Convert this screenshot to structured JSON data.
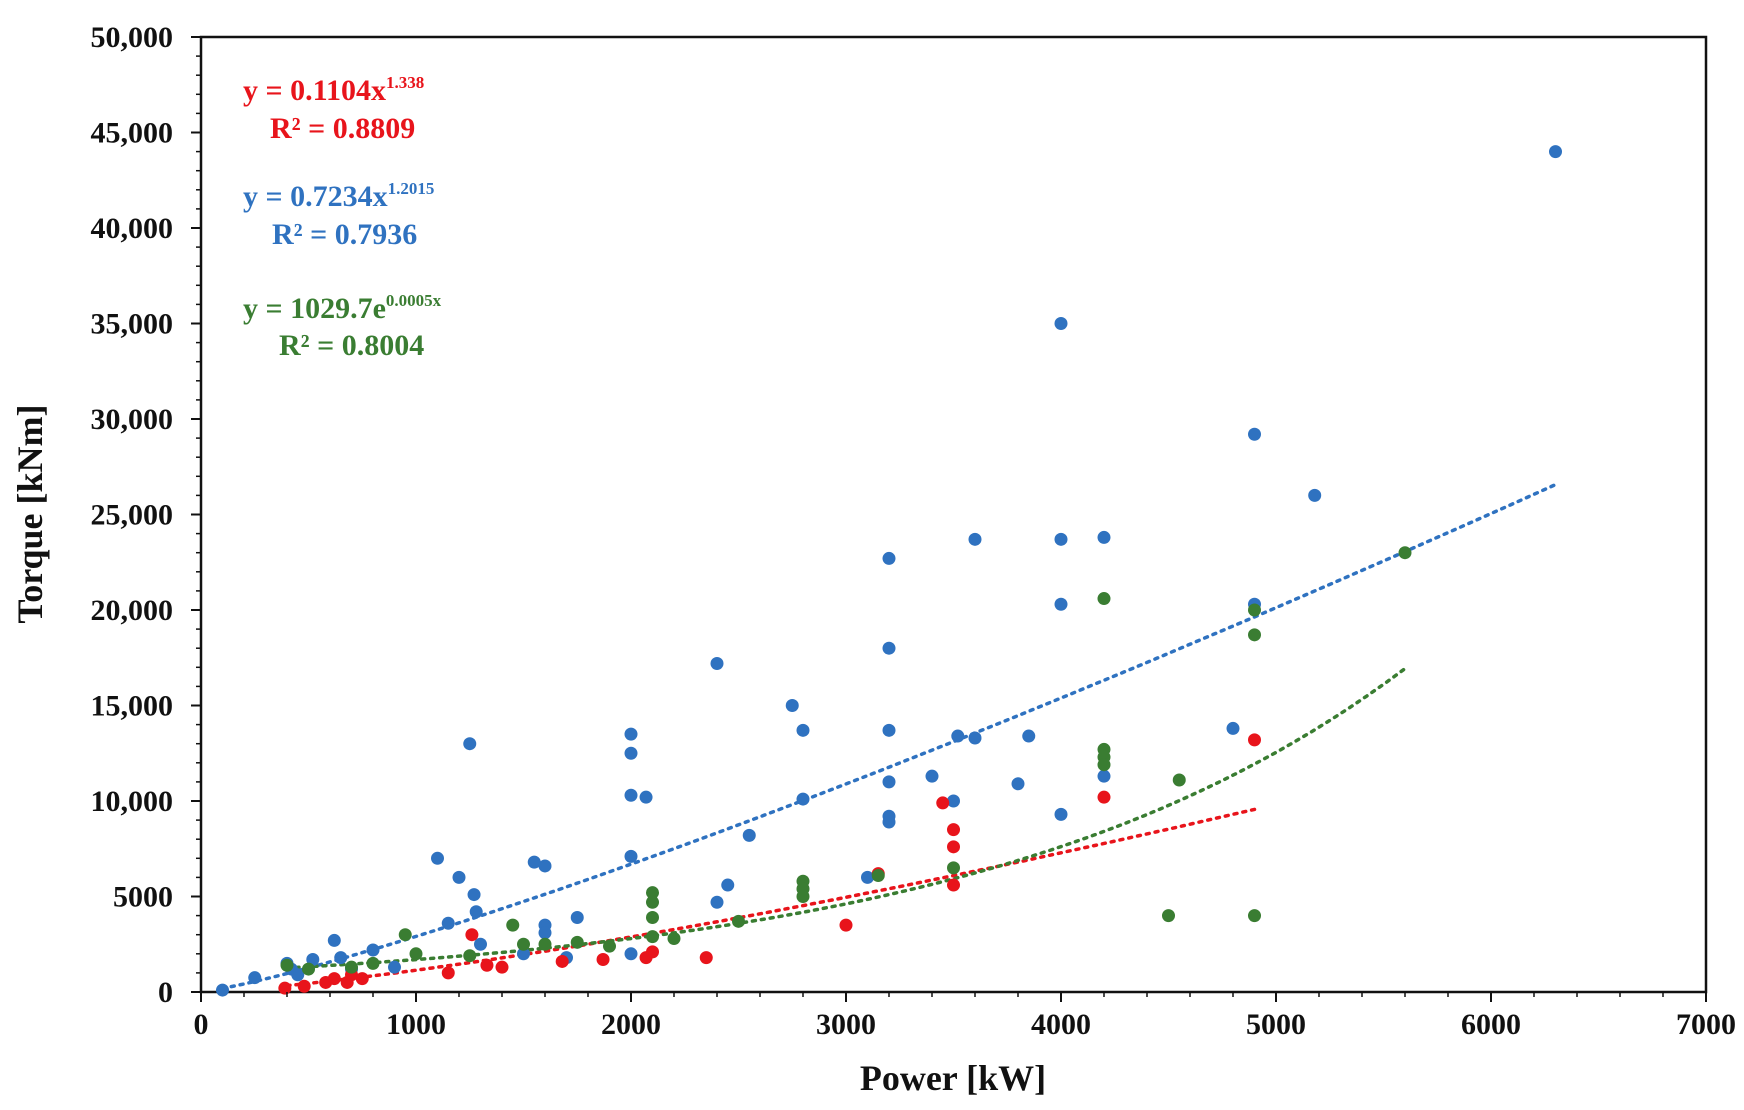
{
  "chart_data": {
    "type": "scatter",
    "title": "",
    "xlabel": "Power [kW]",
    "ylabel": "Torque [kNm]",
    "xlim": [
      0,
      7000
    ],
    "ylim": [
      0,
      50000
    ],
    "x_ticks": [
      0,
      1000,
      2000,
      3000,
      4000,
      5000,
      6000,
      7000
    ],
    "x_tick_labels": [
      "0",
      "1000",
      "2000",
      "3000",
      "4000",
      "5000",
      "6000",
      "7000"
    ],
    "y_ticks": [
      0,
      5000,
      10000,
      15000,
      20000,
      25000,
      30000,
      35000,
      40000,
      45000,
      50000
    ],
    "y_tick_labels": [
      "0",
      "5000",
      "10,000",
      "15,000",
      "20,000",
      "25,000",
      "30,000",
      "35,000",
      "40,000",
      "45,000",
      "50,000"
    ],
    "grid": false,
    "series": [
      {
        "name": "blue",
        "color": "#2f72c0",
        "trendline": {
          "type": "power",
          "a": 0.7234,
          "b": 1.2015,
          "x_range": [
            100,
            6300
          ]
        },
        "equation": "y = 0.7234x",
        "exponent": "1.2015",
        "r2_text": "R² = 0.7936",
        "points": [
          [
            100,
            100
          ],
          [
            250,
            750
          ],
          [
            400,
            1500
          ],
          [
            420,
            1200
          ],
          [
            450,
            900
          ],
          [
            520,
            1700
          ],
          [
            620,
            2700
          ],
          [
            650,
            1800
          ],
          [
            700,
            1200
          ],
          [
            800,
            2200
          ],
          [
            900,
            1300
          ],
          [
            1100,
            7000
          ],
          [
            1150,
            3600
          ],
          [
            1200,
            6000
          ],
          [
            1250,
            13000
          ],
          [
            1270,
            5100
          ],
          [
            1280,
            4200
          ],
          [
            1300,
            2500
          ],
          [
            1500,
            2000
          ],
          [
            1550,
            6800
          ],
          [
            1600,
            6600
          ],
          [
            1600,
            3500
          ],
          [
            1600,
            3100
          ],
          [
            1700,
            1800
          ],
          [
            1750,
            3900
          ],
          [
            2000,
            13500
          ],
          [
            2000,
            12500
          ],
          [
            2000,
            10300
          ],
          [
            2000,
            7100
          ],
          [
            2000,
            2000
          ],
          [
            2070,
            10200
          ],
          [
            2400,
            17200
          ],
          [
            2400,
            4700
          ],
          [
            2450,
            5600
          ],
          [
            2550,
            8200
          ],
          [
            2750,
            15000
          ],
          [
            2800,
            13700
          ],
          [
            2800,
            10100
          ],
          [
            3100,
            6000
          ],
          [
            3200,
            22700
          ],
          [
            3200,
            18000
          ],
          [
            3200,
            13700
          ],
          [
            3200,
            11000
          ],
          [
            3200,
            9200
          ],
          [
            3200,
            8900
          ],
          [
            3400,
            11300
          ],
          [
            3500,
            10000
          ],
          [
            3520,
            13400
          ],
          [
            3600,
            23700
          ],
          [
            3600,
            13300
          ],
          [
            3800,
            10900
          ],
          [
            3850,
            13400
          ],
          [
            4000,
            35000
          ],
          [
            4000,
            23700
          ],
          [
            4000,
            20300
          ],
          [
            4000,
            9300
          ],
          [
            4200,
            23800
          ],
          [
            4200,
            11300
          ],
          [
            4800,
            13800
          ],
          [
            4900,
            29200
          ],
          [
            4900,
            20300
          ],
          [
            5180,
            26000
          ],
          [
            6300,
            44000
          ]
        ]
      },
      {
        "name": "red",
        "color": "#e8141b",
        "trendline": {
          "type": "power",
          "a": 0.1104,
          "b": 1.338,
          "x_range": [
            400,
            4900
          ]
        },
        "equation": "y = 0.1104x",
        "exponent": "1.338",
        "r2_text": "R² = 0.8809",
        "points": [
          [
            390,
            200
          ],
          [
            480,
            300
          ],
          [
            580,
            500
          ],
          [
            620,
            700
          ],
          [
            680,
            500
          ],
          [
            700,
            900
          ],
          [
            750,
            700
          ],
          [
            1150,
            1000
          ],
          [
            1260,
            3000
          ],
          [
            1330,
            1400
          ],
          [
            1400,
            1300
          ],
          [
            1680,
            1600
          ],
          [
            1870,
            1700
          ],
          [
            2070,
            1800
          ],
          [
            2100,
            2100
          ],
          [
            2350,
            1800
          ],
          [
            3000,
            3500
          ],
          [
            3150,
            6200
          ],
          [
            3450,
            9900
          ],
          [
            3500,
            8500
          ],
          [
            3500,
            7600
          ],
          [
            3500,
            5600
          ],
          [
            4200,
            10200
          ],
          [
            4900,
            13200
          ]
        ]
      },
      {
        "name": "green",
        "color": "#3a7d32",
        "trendline": {
          "type": "exponential",
          "a": 1029.7,
          "b": 0.0005,
          "x_range": [
            400,
            5600
          ]
        },
        "equation": "y = 1029.7e",
        "exponent": "0.0005x",
        "r2_text": "R² = 0.8004",
        "points": [
          [
            400,
            1400
          ],
          [
            500,
            1200
          ],
          [
            700,
            1300
          ],
          [
            800,
            1500
          ],
          [
            950,
            3000
          ],
          [
            1000,
            2000
          ],
          [
            1250,
            1900
          ],
          [
            1450,
            3500
          ],
          [
            1500,
            2500
          ],
          [
            1600,
            2500
          ],
          [
            1750,
            2600
          ],
          [
            1900,
            2400
          ],
          [
            2100,
            5200
          ],
          [
            2100,
            4700
          ],
          [
            2100,
            3900
          ],
          [
            2100,
            2900
          ],
          [
            2200,
            2800
          ],
          [
            2500,
            3700
          ],
          [
            2800,
            5800
          ],
          [
            2800,
            5400
          ],
          [
            2800,
            5000
          ],
          [
            3150,
            6100
          ],
          [
            3500,
            6500
          ],
          [
            4200,
            20600
          ],
          [
            4200,
            12700
          ],
          [
            4200,
            12300
          ],
          [
            4200,
            11900
          ],
          [
            4500,
            4000
          ],
          [
            4550,
            11100
          ],
          [
            4900,
            20000
          ],
          [
            4900,
            18700
          ],
          [
            4900,
            4000
          ],
          [
            5600,
            23000
          ]
        ]
      }
    ]
  }
}
